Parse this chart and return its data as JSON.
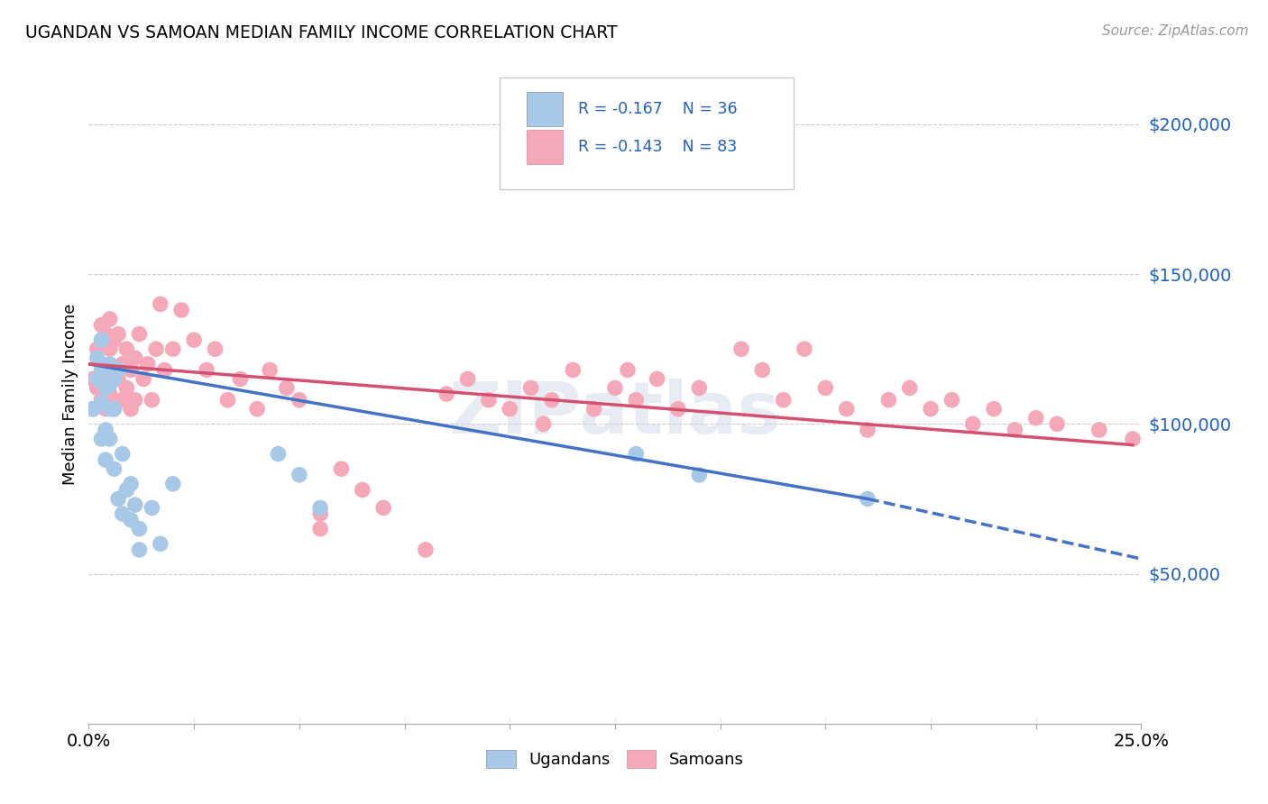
{
  "title": "UGANDAN VS SAMOAN MEDIAN FAMILY INCOME CORRELATION CHART",
  "source": "Source: ZipAtlas.com",
  "ylabel": "Median Family Income",
  "yticks": [
    0,
    50000,
    100000,
    150000,
    200000
  ],
  "ytick_labels": [
    "",
    "$50,000",
    "$100,000",
    "$150,000",
    "$200,000"
  ],
  "xlim": [
    0.0,
    0.25
  ],
  "ylim": [
    0,
    220000
  ],
  "legend_labels": [
    "Ugandans",
    "Samoans"
  ],
  "ugandan_color": "#a8c8e8",
  "samoan_color": "#f4a8b8",
  "ugandan_line_color": "#4472c4",
  "samoan_line_color": "#d45070",
  "label_color": "#2060c0",
  "background_color": "#ffffff",
  "watermark": "ZIPatlas",
  "ugandan_x": [
    0.001,
    0.002,
    0.002,
    0.003,
    0.003,
    0.003,
    0.003,
    0.004,
    0.004,
    0.004,
    0.005,
    0.005,
    0.005,
    0.005,
    0.006,
    0.006,
    0.006,
    0.007,
    0.007,
    0.008,
    0.008,
    0.009,
    0.01,
    0.01,
    0.011,
    0.012,
    0.012,
    0.015,
    0.017,
    0.02,
    0.045,
    0.05,
    0.055,
    0.13,
    0.145,
    0.185
  ],
  "ugandan_y": [
    105000,
    115000,
    122000,
    128000,
    118000,
    107000,
    95000,
    112000,
    98000,
    88000,
    120000,
    113000,
    105000,
    95000,
    115000,
    105000,
    85000,
    118000,
    75000,
    90000,
    70000,
    78000,
    80000,
    68000,
    73000,
    65000,
    58000,
    72000,
    60000,
    80000,
    90000,
    83000,
    72000,
    90000,
    83000,
    75000
  ],
  "samoan_x": [
    0.001,
    0.001,
    0.002,
    0.002,
    0.003,
    0.003,
    0.003,
    0.004,
    0.004,
    0.004,
    0.005,
    0.005,
    0.005,
    0.006,
    0.006,
    0.006,
    0.007,
    0.007,
    0.008,
    0.008,
    0.009,
    0.009,
    0.01,
    0.01,
    0.011,
    0.011,
    0.012,
    0.013,
    0.014,
    0.015,
    0.016,
    0.017,
    0.018,
    0.02,
    0.022,
    0.025,
    0.028,
    0.03,
    0.033,
    0.036,
    0.04,
    0.043,
    0.047,
    0.05,
    0.055,
    0.055,
    0.06,
    0.065,
    0.07,
    0.08,
    0.085,
    0.09,
    0.095,
    0.1,
    0.105,
    0.108,
    0.11,
    0.115,
    0.12,
    0.125,
    0.128,
    0.13,
    0.135,
    0.14,
    0.145,
    0.155,
    0.16,
    0.165,
    0.17,
    0.175,
    0.18,
    0.185,
    0.19,
    0.195,
    0.2,
    0.205,
    0.21,
    0.215,
    0.22,
    0.225,
    0.23,
    0.24,
    0.248
  ],
  "samoan_y": [
    115000,
    105000,
    125000,
    112000,
    133000,
    120000,
    108000,
    130000,
    118000,
    105000,
    135000,
    125000,
    110000,
    128000,
    118000,
    105000,
    130000,
    115000,
    120000,
    108000,
    125000,
    112000,
    118000,
    105000,
    122000,
    108000,
    130000,
    115000,
    120000,
    108000,
    125000,
    140000,
    118000,
    125000,
    138000,
    128000,
    118000,
    125000,
    108000,
    115000,
    105000,
    118000,
    112000,
    108000,
    70000,
    65000,
    85000,
    78000,
    72000,
    58000,
    110000,
    115000,
    108000,
    105000,
    112000,
    100000,
    108000,
    118000,
    105000,
    112000,
    118000,
    108000,
    115000,
    105000,
    112000,
    125000,
    118000,
    108000,
    125000,
    112000,
    105000,
    98000,
    108000,
    112000,
    105000,
    108000,
    100000,
    105000,
    98000,
    102000,
    100000,
    98000,
    95000
  ]
}
